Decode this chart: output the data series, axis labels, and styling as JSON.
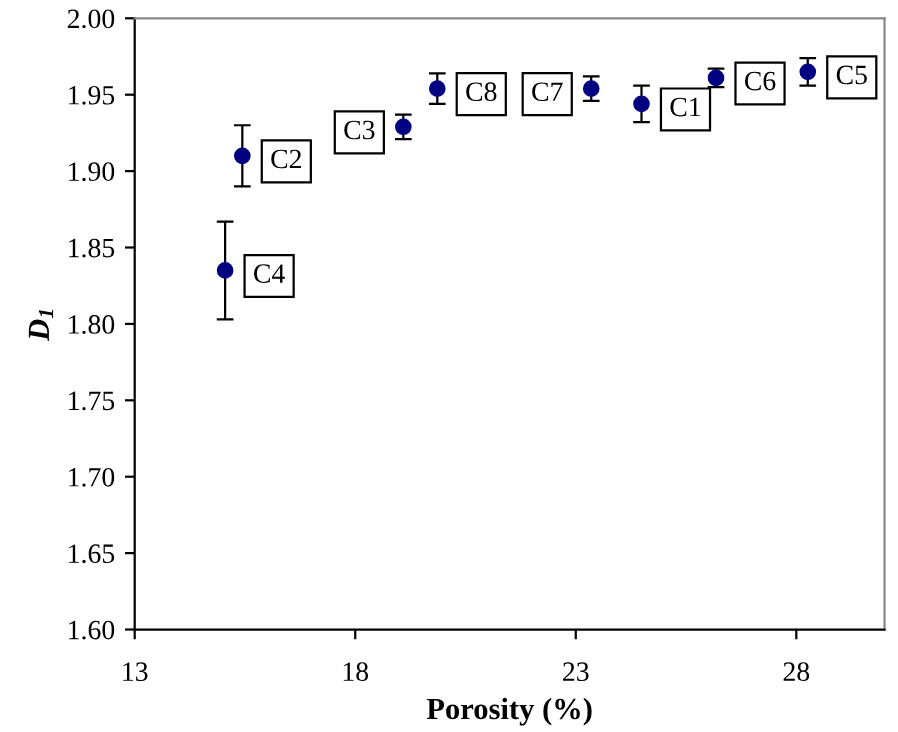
{
  "chart_data": {
    "type": "scatter",
    "xlabel": "Porosity (%)",
    "ylabel": "D$_{1}$",
    "x": [
      15.05,
      15.44,
      19.09,
      19.86,
      23.35,
      24.49,
      26.18,
      28.26
    ],
    "values": [
      1.835,
      1.91,
      1.929,
      1.954,
      1.954,
      1.944,
      1.961,
      1.965
    ],
    "errors": [
      0.032,
      0.02,
      0.008,
      0.01,
      0.008,
      0.012,
      0.006,
      0.009
    ],
    "color": "#000080",
    "marker": "circle",
    "xlim": [
      13,
      30
    ],
    "xticks": [
      13,
      18,
      23,
      28
    ],
    "ylim": [
      1.6,
      2.0
    ],
    "yticks": [
      {
        "value": 1.6,
        "label": "1.60"
      },
      {
        "value": 1.65,
        "label": "1.65"
      },
      {
        "value": 1.7,
        "label": "1.70"
      },
      {
        "value": 1.75,
        "label": "1.75"
      },
      {
        "value": 1.8,
        "label": "1.80"
      },
      {
        "value": 1.85,
        "label": "1.85"
      },
      {
        "value": 1.9,
        "label": "1.90"
      },
      {
        "value": 1.95,
        "label": "1.95"
      },
      {
        "value": 2.0,
        "label": "2.00"
      }
    ],
    "grid": false,
    "annotations": [
      {
        "text": "C4",
        "x": 15.05,
        "y": 1.835
      },
      {
        "text": "C2",
        "x": 15.44,
        "y": 1.91
      },
      {
        "text": "C3",
        "x": 19.09,
        "y": 1.929
      },
      {
        "text": "C8",
        "x": 19.86,
        "y": 1.954
      },
      {
        "text": "C7",
        "x": 23.35,
        "y": 1.954
      },
      {
        "text": "C1",
        "x": 24.49,
        "y": 1.944
      },
      {
        "text": "C6",
        "x": 26.18,
        "y": 1.961
      },
      {
        "text": "C5",
        "x": 28.26,
        "y": 1.965
      }
    ]
  }
}
